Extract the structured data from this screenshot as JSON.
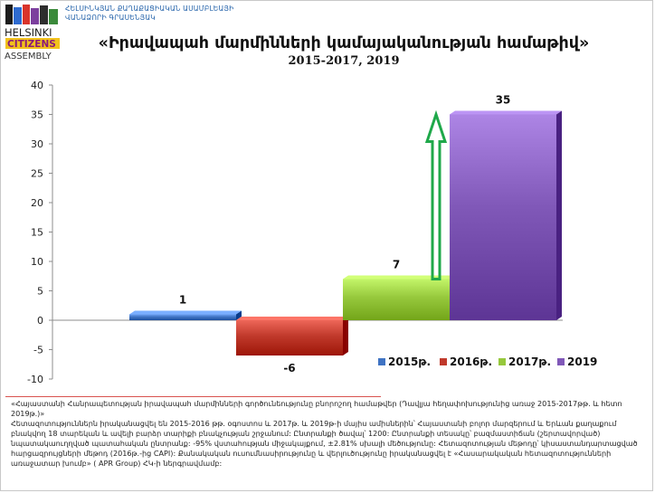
{
  "header": {
    "org_lines": [
      "ՀԵԼՍԻՆԿՅԱՆ ՔԱՂԱՔԱՑԻԱԿԱՆ ԱՍԱՄԲԼԵԱՅԻ",
      "ՎԱՆԱՁՈՐԻ ԳՐԱՍԵՆՅԱԿ"
    ],
    "logo_text": [
      "HELSINKI",
      "CITIZENS",
      "ASSEMBLY"
    ],
    "title": "«Իրավապահ մարմինների կամայականության համաթիվ»",
    "subtitle": "2015-2017, 2019"
  },
  "colors": {
    "s2015": "#3f73c3",
    "s2016": "#c0392b",
    "s2017": "#96c83c",
    "s2019": "#8058b8",
    "arrow": "#1fa84a"
  },
  "chart_data": {
    "type": "bar",
    "title": "«Իրավապահ մարմինների կամայականության համաթիվ»",
    "subtitle": "2015-2017, 2019",
    "ylim": [
      -10,
      40
    ],
    "yticks": [
      -10,
      -5,
      0,
      5,
      10,
      15,
      20,
      25,
      30,
      35,
      40
    ],
    "grid": false,
    "legend_position": "bottom-right",
    "series": [
      {
        "name": "2015թ.",
        "value": 1,
        "label": "1"
      },
      {
        "name": "2016թ.",
        "value": -6,
        "label": "-6"
      },
      {
        "name": "2017թ.",
        "value": 7,
        "label": "7"
      },
      {
        "name": "2019",
        "value": 35,
        "label": "35"
      }
    ],
    "annotation": {
      "type": "arrow",
      "from_value": 7,
      "to_value": 35
    }
  },
  "notes": [
    "«Հայաստանի Հանրապետության իրավապահ մարմինների գործունեությունը բնորոշող համաթվեր (Դավլյա հեղափոխությունից առաջ 2015-2017թթ. և հետո 2019թ.)»",
    "Հետազոտություններն իրականացվել են 2015-2016 թթ. օգոստոս և 2017թ. և 2019թ-ի մայիս ամիսներին՝ Հայաստանի բոլոր մարզերում և Երևան քաղաքում բնակվող 18 տարեկան և ավելի բարձր տարիքի բնակչության շրջանում: Ընտրանքի ծավալ՝ 1200: Ընտրանքի տեսակը՝ բազմաստիճան (շերտավորված) նպատակաուղղված պատահական ընտրանք: -95% վստահության միջակայքում, ±2.81% սխալի մեծությունը: Հետազոտության մեթոդը՝ կիսաստանդարտացված հարցազրույցների մեթոդ (2016թ.-ից CAPI): Քանակական ուսումնասիրությունը և վերլուծությունը իրականացվել է «Հասարակական հետազոտությունների առաջատար խումբ» ( APR Group) ՀԿ-ի ներգրավմամբ:"
  ]
}
